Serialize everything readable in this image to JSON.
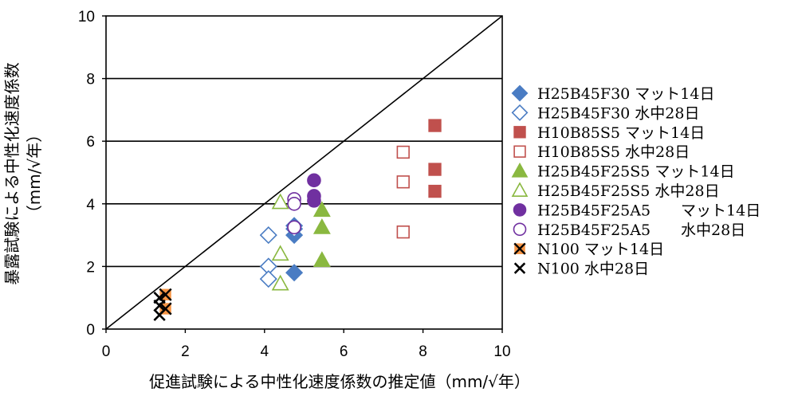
{
  "chart_data": {
    "type": "scatter",
    "xlabel": "促進試験による中性化速度係数の推定値（mm/√年）",
    "ylabel_line1": "暴露試験による中性化速度係数",
    "ylabel_line2": "（mm/√年）",
    "xlim": [
      0,
      10
    ],
    "ylim": [
      0,
      10
    ],
    "xticks": [
      "0",
      "2",
      "4",
      "6",
      "8",
      "10"
    ],
    "yticks": [
      "0",
      "2",
      "4",
      "6",
      "8",
      "10"
    ],
    "grid": "horizontal",
    "reference_line": "y = x",
    "legend_position": "right",
    "series": [
      {
        "name": "H25B45F30 マット14日",
        "marker": "diamond",
        "filled": true,
        "color": "#4a7cc3",
        "points": [
          [
            4.75,
            3.3
          ],
          [
            4.75,
            3.0
          ],
          [
            4.75,
            1.8
          ]
        ]
      },
      {
        "name": "H25B45F30 水中28日",
        "marker": "diamond",
        "filled": false,
        "color": "#4a7cc3",
        "points": [
          [
            4.1,
            3.0
          ],
          [
            4.1,
            2.0
          ],
          [
            4.1,
            1.6
          ],
          [
            4.75,
            3.2
          ]
        ]
      },
      {
        "name": "H10B85S5 マット14日",
        "marker": "square",
        "filled": true,
        "color": "#c0504d",
        "points": [
          [
            8.3,
            6.5
          ],
          [
            8.3,
            5.1
          ],
          [
            8.3,
            4.4
          ]
        ]
      },
      {
        "name": "H10B85S5 水中28日",
        "marker": "square",
        "filled": false,
        "color": "#c0504d",
        "points": [
          [
            7.5,
            5.65
          ],
          [
            7.5,
            4.7
          ],
          [
            7.5,
            3.1
          ]
        ]
      },
      {
        "name": "H25B45F25S5 マット14日",
        "marker": "triangle",
        "filled": true,
        "color": "#8ab840",
        "points": [
          [
            5.45,
            3.8
          ],
          [
            5.45,
            3.25
          ],
          [
            5.45,
            2.2
          ]
        ]
      },
      {
        "name": "H25B45F25S5 水中28日",
        "marker": "triangle",
        "filled": false,
        "color": "#8ab840",
        "points": [
          [
            4.4,
            4.05
          ],
          [
            4.4,
            2.4
          ],
          [
            4.4,
            1.45
          ]
        ]
      },
      {
        "name": "H25B45F25A5　　マット14日",
        "marker": "circle",
        "filled": true,
        "color": "#7030a0",
        "points": [
          [
            5.25,
            4.75
          ],
          [
            5.25,
            4.25
          ],
          [
            5.25,
            4.1
          ]
        ]
      },
      {
        "name": "H25B45F25A5　　水中28日",
        "marker": "circle",
        "filled": false,
        "color": "#7030a0",
        "points": [
          [
            4.75,
            4.15
          ],
          [
            4.75,
            4.0
          ],
          [
            4.75,
            3.25
          ]
        ]
      },
      {
        "name": "N100 マット14日",
        "marker": "cross-box",
        "filled": true,
        "color": "#f79646",
        "points": [
          [
            1.5,
            1.1
          ],
          [
            1.5,
            0.65
          ]
        ]
      },
      {
        "name": "N100 水中28日",
        "marker": "cross",
        "filled": false,
        "color": "#000000",
        "points": [
          [
            1.35,
            1.0
          ],
          [
            1.35,
            0.75
          ],
          [
            1.35,
            0.45
          ]
        ]
      }
    ]
  }
}
